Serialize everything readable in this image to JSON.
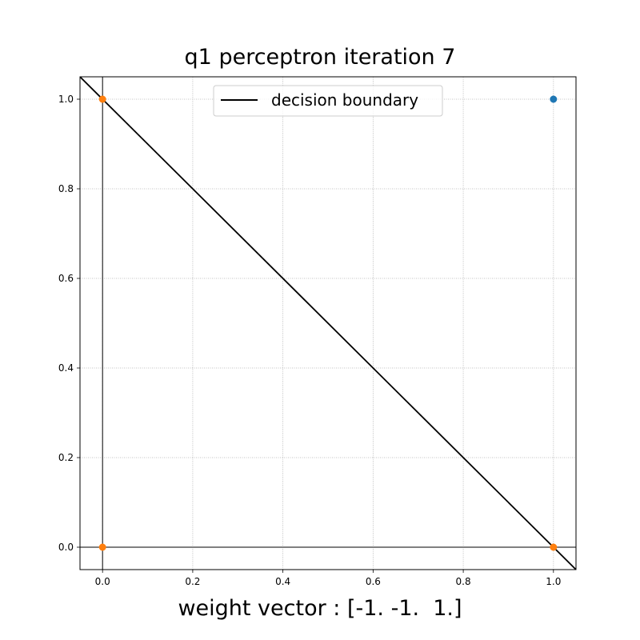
{
  "chart_data": {
    "type": "scatter",
    "title": "q1 perceptron iteration 7",
    "xlabel": "weight vector : [-1. -1.  1.]",
    "ylabel": "",
    "xlim": [
      -0.05,
      1.05
    ],
    "ylim": [
      -0.05,
      1.05
    ],
    "xticks": [
      "0.0",
      "0.2",
      "0.4",
      "0.6",
      "0.8",
      "1.0"
    ],
    "yticks": [
      "0.0",
      "0.2",
      "0.4",
      "0.6",
      "0.8",
      "1.0"
    ],
    "grid": true,
    "grid_style": "dotted",
    "legend_position": "top-center",
    "reference_lines": {
      "x": 0,
      "y": 0
    },
    "series": [
      {
        "color": "#1f77b4",
        "points": [
          {
            "x": 1,
            "y": 1
          }
        ]
      },
      {
        "color": "#ff7f0e",
        "points": [
          {
            "x": 0,
            "y": 1
          },
          {
            "x": 0,
            "y": 0
          },
          {
            "x": 1,
            "y": 0
          }
        ]
      }
    ],
    "decision_boundary": {
      "name": "decision boundary",
      "weights": [
        -1,
        -1,
        1
      ],
      "color": "#000000"
    }
  }
}
